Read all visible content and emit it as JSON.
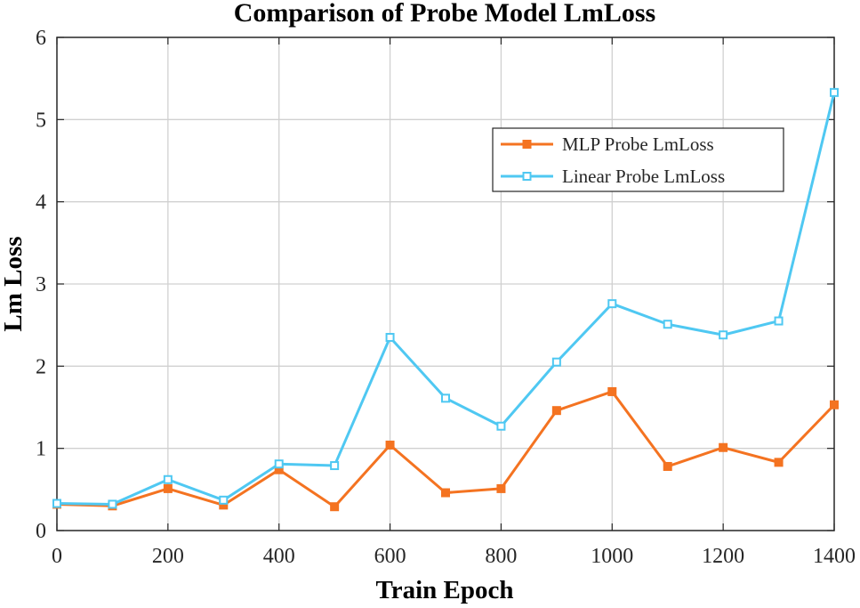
{
  "chart_data": {
    "type": "line",
    "title": "Comparison of Probe Model LmLoss",
    "xlabel": "Train Epoch",
    "ylabel": "Lm Loss",
    "xlim": [
      0,
      1400
    ],
    "ylim": [
      0,
      6
    ],
    "xticks": [
      "0",
      "200",
      "400",
      "600",
      "800",
      "1000",
      "1200",
      "1400"
    ],
    "yticks": [
      "0",
      "1",
      "2",
      "3",
      "4",
      "5",
      "6"
    ],
    "grid": true,
    "legend_position": "top-right",
    "x": [
      0,
      100,
      200,
      300,
      400,
      500,
      600,
      700,
      800,
      900,
      1000,
      1100,
      1200,
      1300,
      1400
    ],
    "series": [
      {
        "name": "MLP Probe LmLoss",
        "color": "#f47321",
        "marker": "filled-square",
        "values": [
          0.32,
          0.3,
          0.51,
          0.31,
          0.74,
          0.29,
          1.04,
          0.46,
          0.51,
          1.46,
          1.69,
          0.78,
          1.01,
          0.83,
          1.53
        ]
      },
      {
        "name": "Linear Probe LmLoss",
        "color": "#4fc8f2",
        "marker": "open-square",
        "values": [
          0.33,
          0.32,
          0.62,
          0.37,
          0.81,
          0.79,
          2.35,
          1.61,
          1.27,
          2.05,
          2.76,
          2.51,
          2.38,
          2.55,
          5.33
        ]
      }
    ]
  }
}
